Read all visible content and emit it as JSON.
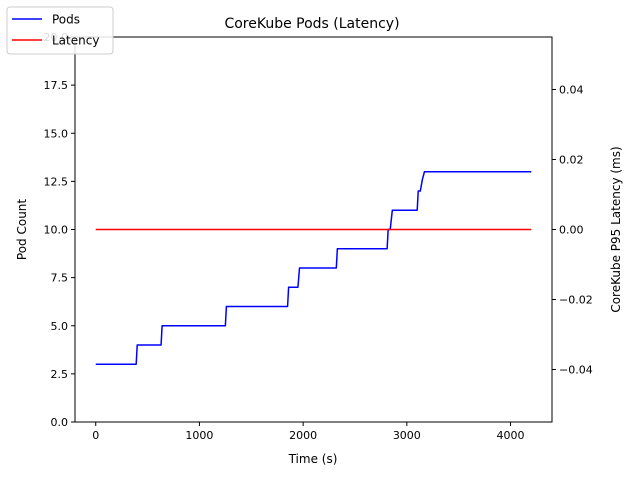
{
  "chart_data": {
    "type": "line",
    "title": "CoreKube Pods (Latency)",
    "xlabel": "Time (s)",
    "ylabel": "Pod Count",
    "y2label": "CoreKube P95 Latency (ms)",
    "xlim": [
      -200,
      4400
    ],
    "ylim": [
      0,
      20
    ],
    "y2lim": [
      -0.055,
      0.055
    ],
    "xticks": [
      0,
      1000,
      2000,
      3000,
      4000
    ],
    "xtick_labels": [
      "0",
      "1000",
      "2000",
      "3000",
      "4000"
    ],
    "yticks": [
      0,
      2.5,
      5,
      7.5,
      10,
      12.5,
      15,
      17.5,
      20
    ],
    "ytick_labels": [
      "0.0",
      "2.5",
      "5.0",
      "7.5",
      "10.0",
      "12.5",
      "15.0",
      "17.5",
      "20.0"
    ],
    "y2ticks": [
      -0.04,
      -0.02,
      0,
      0.02,
      0.04
    ],
    "y2tick_labels": [
      "−0.04",
      "−0.02",
      "0.00",
      "0.02",
      "0.04"
    ],
    "grid": false,
    "legend": "top-left",
    "series": [
      {
        "name": "Pods",
        "color": "#0000ff",
        "axis": "left",
        "x": [
          0,
          390,
          400,
          630,
          640,
          1250,
          1260,
          1850,
          1860,
          1950,
          1965,
          2320,
          2330,
          2810,
          2820,
          2840,
          2860,
          3100,
          3110,
          3130,
          3150,
          3170,
          4200
        ],
        "y": [
          3,
          3,
          4,
          4,
          5,
          5,
          6,
          6,
          7,
          7,
          8,
          8,
          9,
          9,
          10,
          10,
          11,
          11,
          12,
          12,
          12.6,
          13,
          13
        ]
      },
      {
        "name": "Latency",
        "color": "#ff0000",
        "axis": "right",
        "x": [
          0,
          4200
        ],
        "y": [
          0,
          0
        ]
      }
    ]
  }
}
